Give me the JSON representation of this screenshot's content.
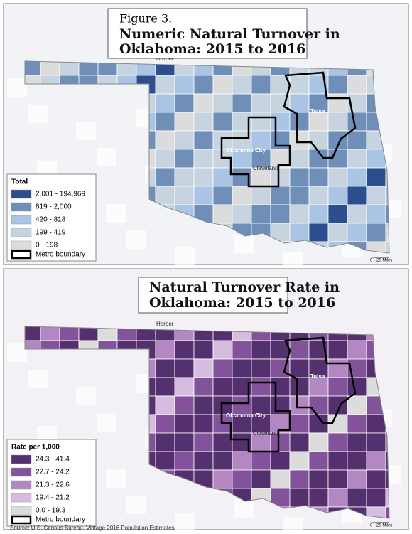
{
  "figure_label": "Figure 3.",
  "maps": [
    {
      "title": [
        "Numeric Natural Turnover in",
        "Oklahoma: 2015 to 2016"
      ],
      "legend": {
        "title": "Total",
        "items": [
          {
            "label": "2,001 - 194,969",
            "color": "#2c4d8e"
          },
          {
            "label": "819 - 2,000",
            "color": "#6f8fb8"
          },
          {
            "label": "420 - 818",
            "color": "#a9c4e4"
          },
          {
            "label": "199 - 419",
            "color": "#c8d3e0"
          },
          {
            "label": "0 - 198",
            "color": "#dcdcdc"
          }
        ],
        "boundary": "Metro boundary"
      },
      "places": [
        "Harper",
        "Tulsa",
        "Oklahoma City",
        "Cleveland"
      ],
      "scale": [
        "0",
        "20 Miles"
      ]
    },
    {
      "title": [
        "Natural Turnover Rate in",
        "Oklahoma: 2015 to 2016"
      ],
      "legend": {
        "title": "Rate per 1,000",
        "items": [
          {
            "label": "24.3 - 41.4",
            "color": "#55306f"
          },
          {
            "label": "22.7 - 24.2",
            "color": "#82529a"
          },
          {
            "label": "21.3 - 22.6",
            "color": "#b287c2"
          },
          {
            "label": "19.4 - 21.2",
            "color": "#d6bde0"
          },
          {
            "label": "0.0 - 19.3",
            "color": "#dcdcdc"
          }
        ],
        "boundary": "Metro boundary"
      },
      "places": [
        "Harper",
        "Tulsa",
        "Oklahoma City",
        "Cleveland"
      ],
      "scale": [
        "0",
        "20 Miles"
      ]
    }
  ],
  "source": "Source: U.S. Census Bureau, Vintage 2016 Population Estimates."
}
